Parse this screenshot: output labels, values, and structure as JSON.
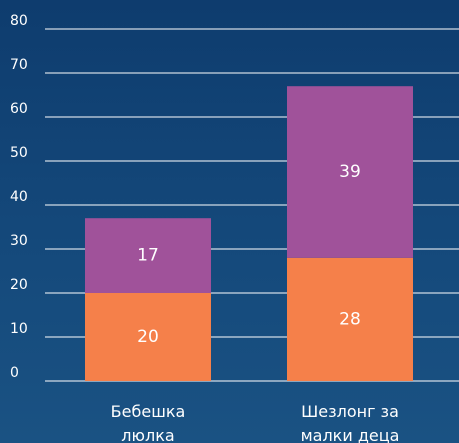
{
  "chart_data": {
    "type": "stacked_bar",
    "categories": [
      "Бебешка люлка",
      "Шезлонг за малки деца"
    ],
    "series": [
      {
        "color": "#f5804a",
        "values": [
          20,
          28
        ]
      },
      {
        "color": "#a0529a",
        "values": [
          17,
          39
        ]
      }
    ],
    "ylim": [
      0,
      80
    ],
    "yticks": [
      0,
      10,
      20,
      30,
      40,
      50,
      60,
      70,
      80
    ],
    "grid": true
  }
}
